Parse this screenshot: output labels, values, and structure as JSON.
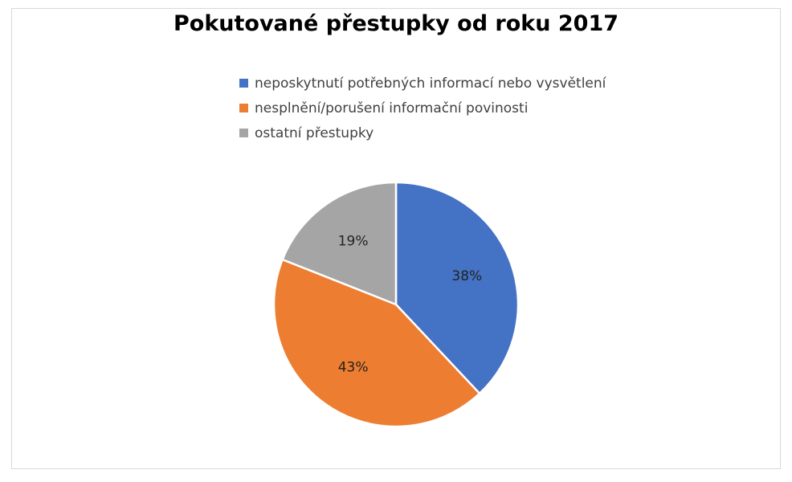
{
  "chart_data": {
    "type": "pie",
    "title": "Pokutované přestupky od roku 2017",
    "legend_position": "top",
    "categories": [
      "neposkytnutí potřebných informací nebo vysvětlení",
      "nesplnění/porušení informační povinosti",
      "ostatní přestupky"
    ],
    "values": [
      38,
      43,
      19
    ],
    "labels": [
      "38%",
      "43%",
      "19%"
    ],
    "colors": [
      "#4472C4",
      "#ED7D31",
      "#A5A5A5"
    ]
  }
}
